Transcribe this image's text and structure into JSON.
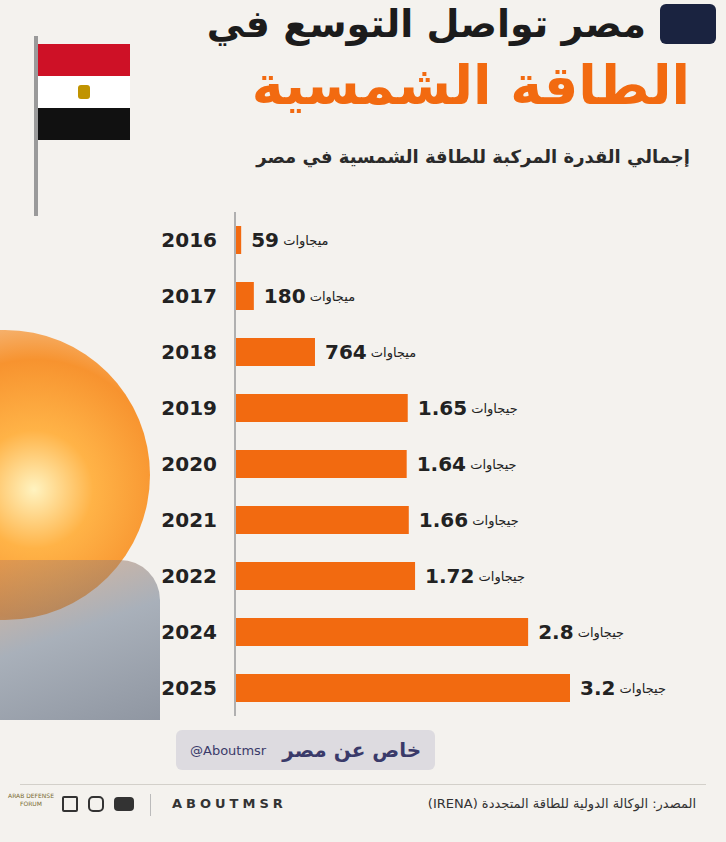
{
  "chart_data": {
    "type": "bar",
    "orientation": "horizontal",
    "title": "مصر تواصل التوسع في",
    "title2": "الطاقة الشمسية",
    "subtitle": "إجمالي القدرة المركبة للطاقة الشمسية في مصر",
    "categories": [
      "2016",
      "2017",
      "2018",
      "2019",
      "2020",
      "2021",
      "2022",
      "2024",
      "2025"
    ],
    "values": [
      59,
      180,
      764,
      1650,
      1640,
      1660,
      1720,
      2800,
      3200
    ],
    "value_labels": [
      "59 ميجاوات",
      "180 ميجاوات",
      "764 ميجاوات",
      "1.65 جيجاوات",
      "1.64 جيجاوات",
      "1.66 جيجاوات",
      "1.72 جيجاوات",
      "2.8 جيجاوات",
      "3.2 جيجاوات"
    ],
    "color": "#f26a10",
    "xlim": [
      0,
      3200
    ],
    "data_labels": true,
    "tick_labels": "y",
    "grid": false,
    "source": "المصدر: الوكالة الدولية للطاقة المتجددة (IRENA)",
    "brand": "ABOUTMSR",
    "watermark": [
      "خاص عن مصر",
      "@Aboutmsr"
    ],
    "logo_text": "ARAB DEFENSE FORUM"
  }
}
